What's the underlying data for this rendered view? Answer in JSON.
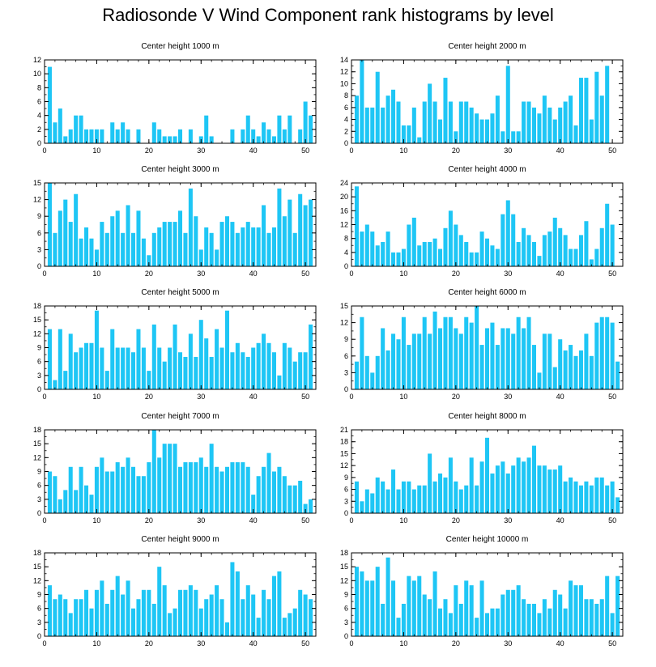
{
  "title": "Radiosonde V Wind Component rank histograms by level",
  "colors": {
    "bar": "#1ec6f5",
    "axis": "#000000",
    "background": "#ffffff"
  },
  "chart_data": [
    {
      "type": "bar",
      "title": "Center height 1000 m",
      "xlim": [
        0,
        52
      ],
      "ylim": [
        0,
        12
      ],
      "xticks": [
        0,
        10,
        20,
        30,
        40,
        50
      ],
      "yticks": [
        0,
        2,
        4,
        6,
        8,
        10,
        12
      ],
      "values": [
        11,
        3,
        5,
        1,
        2,
        4,
        4,
        2,
        2,
        2,
        2,
        0,
        3,
        2,
        3,
        2,
        0,
        2,
        0,
        0,
        3,
        2,
        1,
        1,
        1,
        2,
        0,
        2,
        0,
        1,
        4,
        1,
        0,
        0,
        0,
        2,
        0,
        2,
        4,
        2,
        1,
        3,
        2,
        1,
        4,
        2,
        4,
        0,
        2,
        6,
        4
      ]
    },
    {
      "type": "bar",
      "title": "Center height 2000 m",
      "xlim": [
        0,
        52
      ],
      "ylim": [
        0,
        14
      ],
      "xticks": [
        0,
        10,
        20,
        30,
        40,
        50
      ],
      "yticks": [
        0,
        2,
        4,
        6,
        8,
        10,
        12,
        14
      ],
      "values": [
        8,
        14,
        6,
        6,
        12,
        6,
        8,
        9,
        7,
        3,
        3,
        6,
        1,
        7,
        10,
        7,
        4,
        11,
        7,
        2,
        7,
        7,
        6,
        5,
        4,
        4,
        5,
        8,
        2,
        13,
        2,
        2,
        7,
        7,
        6,
        5,
        8,
        6,
        4,
        6,
        7,
        8,
        3,
        11,
        11,
        4,
        12,
        8,
        13,
        0,
        0
      ]
    },
    {
      "type": "bar",
      "title": "Center height 3000 m",
      "xlim": [
        0,
        52
      ],
      "ylim": [
        0,
        15
      ],
      "xticks": [
        0,
        10,
        20,
        30,
        40,
        50
      ],
      "yticks": [
        0,
        3,
        6,
        9,
        12,
        15
      ],
      "values": [
        15,
        6,
        10,
        12,
        8,
        13,
        5,
        7,
        5,
        3,
        8,
        6,
        9,
        10,
        6,
        11,
        6,
        10,
        5,
        2,
        6,
        7,
        8,
        8,
        8,
        10,
        6,
        14,
        9,
        3,
        7,
        6,
        3,
        8,
        9,
        8,
        6,
        7,
        8,
        7,
        7,
        11,
        6,
        7,
        14,
        9,
        12,
        6,
        13,
        11,
        12
      ]
    },
    {
      "type": "bar",
      "title": "Center height 4000 m",
      "xlim": [
        0,
        52
      ],
      "ylim": [
        0,
        24
      ],
      "xticks": [
        0,
        10,
        20,
        30,
        40,
        50
      ],
      "yticks": [
        0,
        4,
        8,
        12,
        16,
        20,
        24
      ],
      "values": [
        23,
        10,
        12,
        10,
        6,
        7,
        10,
        4,
        4,
        5,
        12,
        14,
        6,
        7,
        7,
        8,
        5,
        11,
        16,
        12,
        9,
        7,
        4,
        4,
        10,
        8,
        6,
        5,
        15,
        19,
        15,
        7,
        11,
        9,
        7,
        3,
        9,
        10,
        14,
        11,
        9,
        5,
        5,
        9,
        13,
        2,
        5,
        11,
        18,
        12,
        0
      ]
    },
    {
      "type": "bar",
      "title": "Center height 5000 m",
      "xlim": [
        0,
        52
      ],
      "ylim": [
        0,
        18
      ],
      "xticks": [
        0,
        10,
        20,
        30,
        40,
        50
      ],
      "yticks": [
        0,
        3,
        6,
        9,
        12,
        15,
        18
      ],
      "values": [
        13,
        2,
        13,
        4,
        12,
        8,
        9,
        10,
        10,
        17,
        9,
        4,
        13,
        9,
        9,
        9,
        8,
        13,
        9,
        4,
        14,
        9,
        6,
        9,
        14,
        8,
        7,
        12,
        7,
        15,
        11,
        7,
        13,
        9,
        17,
        8,
        10,
        8,
        7,
        9,
        10,
        12,
        10,
        8,
        3,
        10,
        9,
        6,
        8,
        8,
        14
      ]
    },
    {
      "type": "bar",
      "title": "Center height 6000 m",
      "xlim": [
        0,
        52
      ],
      "ylim": [
        0,
        15
      ],
      "xticks": [
        0,
        10,
        20,
        30,
        40,
        50
      ],
      "yticks": [
        0,
        3,
        6,
        9,
        12,
        15
      ],
      "values": [
        5,
        13,
        6,
        3,
        6,
        11,
        7,
        10,
        9,
        13,
        8,
        10,
        10,
        13,
        10,
        14,
        11,
        13,
        13,
        11,
        10,
        13,
        12,
        15,
        8,
        11,
        12,
        8,
        11,
        11,
        10,
        13,
        11,
        13,
        8,
        3,
        10,
        10,
        4,
        9,
        7,
        8,
        6,
        7,
        10,
        6,
        12,
        13,
        13,
        12,
        5
      ]
    },
    {
      "type": "bar",
      "title": "Center height 7000 m",
      "xlim": [
        0,
        52
      ],
      "ylim": [
        0,
        18
      ],
      "xticks": [
        0,
        10,
        20,
        30,
        40,
        50
      ],
      "yticks": [
        0,
        3,
        6,
        9,
        12,
        15,
        18
      ],
      "values": [
        9,
        8,
        3,
        5,
        10,
        5,
        10,
        6,
        4,
        10,
        12,
        9,
        9,
        11,
        10,
        12,
        10,
        8,
        8,
        11,
        18,
        12,
        15,
        15,
        15,
        10,
        11,
        11,
        11,
        12,
        10,
        15,
        10,
        9,
        10,
        11,
        11,
        11,
        10,
        4,
        8,
        10,
        13,
        9,
        10,
        8,
        6,
        6,
        7,
        2,
        3
      ]
    },
    {
      "type": "bar",
      "title": "Center height 8000 m",
      "xlim": [
        0,
        52
      ],
      "ylim": [
        0,
        21
      ],
      "xticks": [
        0,
        10,
        20,
        30,
        40,
        50
      ],
      "yticks": [
        0,
        3,
        6,
        9,
        12,
        15,
        18,
        21
      ],
      "values": [
        8,
        3,
        6,
        5,
        9,
        8,
        6,
        11,
        6,
        8,
        8,
        6,
        7,
        7,
        15,
        8,
        10,
        9,
        14,
        8,
        6,
        7,
        14,
        7,
        13,
        19,
        10,
        12,
        13,
        10,
        12,
        14,
        13,
        14,
        17,
        12,
        12,
        11,
        11,
        12,
        8,
        9,
        8,
        7,
        8,
        7,
        9,
        9,
        7,
        8,
        4
      ]
    },
    {
      "type": "bar",
      "title": "Center height 9000 m",
      "xlim": [
        0,
        52
      ],
      "ylim": [
        0,
        18
      ],
      "xticks": [
        0,
        10,
        20,
        30,
        40,
        50
      ],
      "yticks": [
        0,
        3,
        6,
        9,
        12,
        15,
        18
      ],
      "values": [
        11,
        8,
        9,
        8,
        5,
        8,
        8,
        10,
        6,
        10,
        12,
        7,
        10,
        13,
        9,
        12,
        6,
        8,
        10,
        10,
        7,
        15,
        11,
        5,
        6,
        10,
        10,
        11,
        10,
        6,
        8,
        9,
        11,
        8,
        3,
        16,
        14,
        8,
        11,
        9,
        4,
        10,
        8,
        13,
        14,
        4,
        5,
        6,
        10,
        9,
        8
      ]
    },
    {
      "type": "bar",
      "title": "Center height 10000 m",
      "xlim": [
        0,
        52
      ],
      "ylim": [
        0,
        18
      ],
      "xticks": [
        0,
        10,
        20,
        30,
        40,
        50
      ],
      "yticks": [
        0,
        3,
        6,
        9,
        12,
        15,
        18
      ],
      "values": [
        15,
        14,
        12,
        12,
        15,
        7,
        17,
        12,
        4,
        7,
        13,
        12,
        13,
        9,
        8,
        14,
        6,
        8,
        5,
        11,
        7,
        12,
        11,
        4,
        12,
        5,
        6,
        6,
        9,
        10,
        10,
        11,
        8,
        7,
        7,
        5,
        8,
        6,
        10,
        9,
        6,
        12,
        11,
        11,
        8,
        8,
        7,
        8,
        13,
        5,
        13
      ]
    }
  ]
}
